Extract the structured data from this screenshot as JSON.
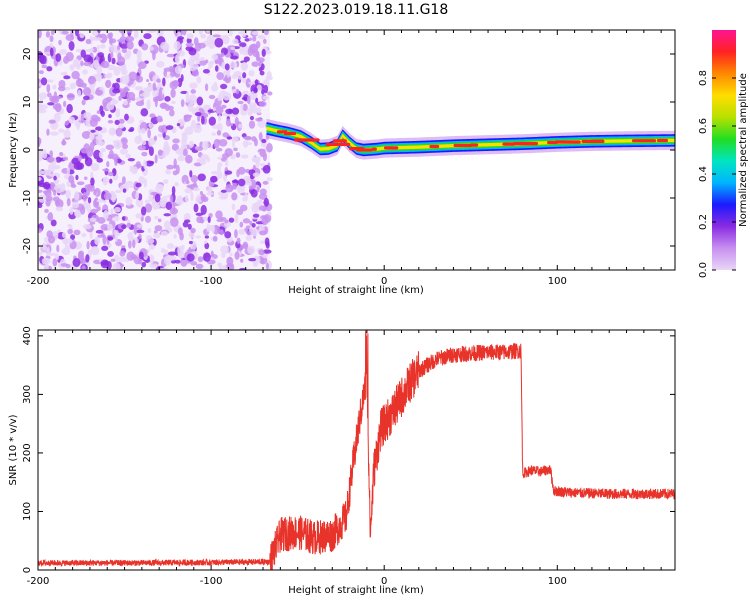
{
  "title": "S122.2023.019.18.11.G18",
  "colors": {
    "snr_line": "#e8332b",
    "colormap": [
      "#e8d6f7",
      "#c890f0",
      "#8a2be2",
      "#1a1aff",
      "#00b4ff",
      "#00e5c0",
      "#22dd22",
      "#b8e000",
      "#ffdd00",
      "#ff8800",
      "#ff2222",
      "#ff1493"
    ]
  },
  "chart_data": [
    {
      "type": "heatmap",
      "xlabel": "Height of straight line (km)",
      "ylabel": "Frequency (Hz)",
      "xlim": [
        -200,
        168
      ],
      "ylim": [
        -25,
        25
      ],
      "xticks": [
        -200,
        -100,
        0,
        100
      ],
      "yticks": [
        -20,
        -10,
        0,
        10,
        20
      ],
      "noise_region_x": [
        -200,
        -66
      ],
      "ridge": {
        "x": [
          -68,
          -62,
          -55,
          -48,
          -42,
          -37,
          -32,
          -27,
          -24,
          -20,
          -16,
          -12,
          -8,
          -4,
          0,
          20,
          40,
          60,
          80,
          100,
          120,
          140,
          168
        ],
        "y": [
          4.5,
          4,
          3.5,
          2.8,
          1.5,
          0.2,
          0.3,
          1,
          3,
          1.5,
          0.3,
          0,
          0.1,
          0.2,
          0.4,
          0.6,
          0.9,
          1.1,
          1.3,
          1.6,
          1.8,
          1.9,
          2.0
        ]
      },
      "colorbar": {
        "label": "Normalized spectral amplitude",
        "range": [
          0,
          1
        ],
        "ticks": [
          "0.0",
          "0.2",
          "0.4",
          "0.6",
          "0.8"
        ]
      }
    },
    {
      "type": "line",
      "xlabel": "Height of straight line (km)",
      "ylabel": "SNR (10 * v/v)",
      "xlim": [
        -200,
        168
      ],
      "ylim": [
        0,
        410
      ],
      "xticks": [
        -200,
        -100,
        0,
        100
      ],
      "yticks": [
        0,
        100,
        200,
        300,
        400
      ],
      "series": [
        {
          "x": [
            -200,
            -150,
            -100,
            -66,
            -60,
            -50,
            -40,
            -30,
            -22,
            -18,
            -14,
            -10,
            -8,
            -6,
            -2,
            5,
            10,
            15,
            20,
            30,
            40,
            50,
            60,
            70,
            79,
            80,
            85,
            90,
            96,
            98,
            110,
            130,
            150,
            168
          ],
          "values": [
            12,
            12,
            13,
            14,
            60,
            65,
            55,
            60,
            90,
            180,
            260,
            330,
            60,
            170,
            240,
            270,
            295,
            320,
            340,
            360,
            368,
            370,
            372,
            372,
            375,
            165,
            170,
            168,
            172,
            135,
            132,
            130,
            130,
            130
          ]
        }
      ]
    }
  ]
}
